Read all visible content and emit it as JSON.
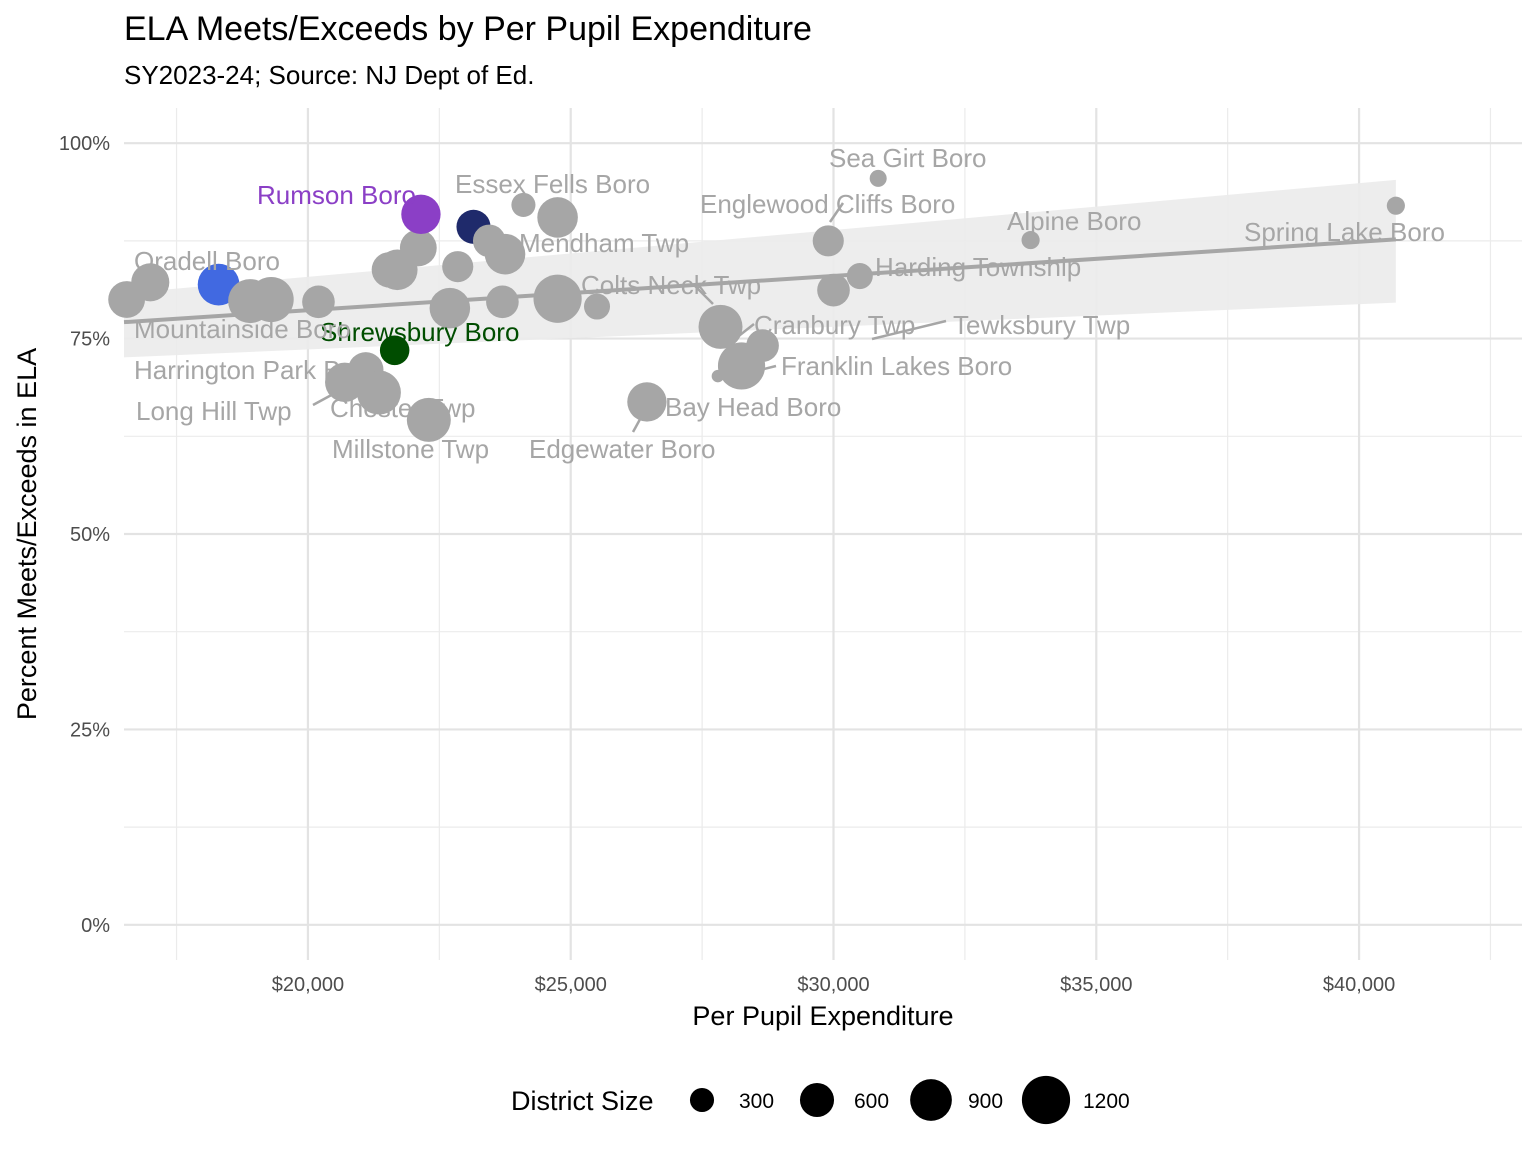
{
  "chart_data": {
    "type": "scatter",
    "title": "ELA Meets/Exceeds by Per Pupil Expenditure",
    "subtitle": "SY2023-24; Source: NJ Dept of Ed.",
    "xlabel": "Per Pupil Expenditure",
    "ylabel": "Percent Meets/Exceeds in ELA",
    "xlim": [
      16500,
      43100
    ],
    "ylim": [
      -0.045,
      1.045
    ],
    "x_ticks": [
      20000,
      25000,
      30000,
      35000,
      40000
    ],
    "x_tick_labels": [
      "$20,000",
      "$25,000",
      "$30,000",
      "$35,000",
      "$40,000"
    ],
    "y_ticks": [
      0,
      0.25,
      0.5,
      0.75,
      1.0
    ],
    "y_tick_labels": [
      "0%",
      "25%",
      "50%",
      "75%",
      "100%"
    ],
    "grid": true,
    "default_color": "#a6a6a6",
    "trend": {
      "x": [
        16500,
        40700
      ],
      "y": [
        0.771,
        0.877
      ],
      "band_lower": [
        0.726,
        0.796
      ],
      "band_upper": [
        0.808,
        0.953
      ],
      "color": "#a6a6a6",
      "band_color": "#ebebeb"
    },
    "legend": {
      "title": "District Size",
      "position": "bottom",
      "sizes": [
        300,
        600,
        900,
        1200
      ],
      "labels": [
        "300",
        "600",
        "900",
        "1200"
      ]
    },
    "points": [
      {
        "x": 16550,
        "y": 0.8,
        "size": 700
      },
      {
        "x": 17000,
        "y": 0.822,
        "size": 750
      },
      {
        "x": 18300,
        "y": 0.819,
        "size": 900,
        "color": "#4169e1"
      },
      {
        "x": 18900,
        "y": 0.798,
        "size": 1000
      },
      {
        "x": 19300,
        "y": 0.8,
        "size": 1050
      },
      {
        "x": 20200,
        "y": 0.797,
        "size": 550
      },
      {
        "x": 20700,
        "y": 0.694,
        "size": 800
      },
      {
        "x": 21100,
        "y": 0.71,
        "size": 650
      },
      {
        "x": 21350,
        "y": 0.681,
        "size": 1000
      },
      {
        "x": 21550,
        "y": 0.838,
        "size": 650
      },
      {
        "x": 21700,
        "y": 0.838,
        "size": 850
      },
      {
        "x": 21650,
        "y": 0.735,
        "size": 450,
        "color": "#004d00"
      },
      {
        "x": 22100,
        "y": 0.866,
        "size": 700
      },
      {
        "x": 22150,
        "y": 0.909,
        "size": 800,
        "color": "#8b3fc6"
      },
      {
        "x": 22300,
        "y": 0.646,
        "size": 1000
      },
      {
        "x": 22700,
        "y": 0.789,
        "size": 850
      },
      {
        "x": 22850,
        "y": 0.842,
        "size": 500
      },
      {
        "x": 23150,
        "y": 0.893,
        "size": 600,
        "color": "#1f2a6b"
      },
      {
        "x": 23450,
        "y": 0.875,
        "size": 550
      },
      {
        "x": 23700,
        "y": 0.797,
        "size": 550
      },
      {
        "x": 23750,
        "y": 0.858,
        "size": 850
      },
      {
        "x": 24100,
        "y": 0.921,
        "size": 300
      },
      {
        "x": 24750,
        "y": 0.905,
        "size": 850
      },
      {
        "x": 24750,
        "y": 0.801,
        "size": 1200
      },
      {
        "x": 25500,
        "y": 0.791,
        "size": 350
      },
      {
        "x": 26450,
        "y": 0.669,
        "size": 800
      },
      {
        "x": 27800,
        "y": 0.702,
        "size": 80
      },
      {
        "x": 27850,
        "y": 0.765,
        "size": 1000
      },
      {
        "x": 28250,
        "y": 0.715,
        "size": 1150
      },
      {
        "x": 28650,
        "y": 0.741,
        "size": 550
      },
      {
        "x": 29900,
        "y": 0.875,
        "size": 500
      },
      {
        "x": 30000,
        "y": 0.812,
        "size": 550
      },
      {
        "x": 30500,
        "y": 0.83,
        "size": 350
      },
      {
        "x": 30850,
        "y": 0.955,
        "size": 150
      },
      {
        "x": 33750,
        "y": 0.876,
        "size": 170
      },
      {
        "x": 40700,
        "y": 0.92,
        "size": 170
      }
    ],
    "annotations": [
      {
        "text": "Rumson Boro",
        "color": "#8b3fc6"
      },
      {
        "text": "Oradell Boro",
        "color": "#a6a6a6"
      },
      {
        "text": "Shrewsbury Boro",
        "color": "#004d00"
      },
      {
        "text": "Essex Fells Boro",
        "color": "#a6a6a6"
      },
      {
        "text": "Sea Girt Boro",
        "color": "#a6a6a6"
      },
      {
        "text": "Englewood Cliffs Boro",
        "color": "#a6a6a6"
      },
      {
        "text": "Alpine Boro",
        "color": "#a6a6a6"
      },
      {
        "text": "Spring Lake Boro",
        "color": "#a6a6a6"
      },
      {
        "text": "Mendham Twp",
        "color": "#a6a6a6"
      },
      {
        "text": "Harding Township",
        "color": "#a6a6a6"
      },
      {
        "text": "Colts Neck Twp",
        "color": "#a6a6a6"
      },
      {
        "text": "Mountainside Boro",
        "color": "#a6a6a6"
      },
      {
        "text": "Cranbury Twp",
        "color": "#a6a6a6"
      },
      {
        "text": "Tewksbury Twp",
        "color": "#a6a6a6"
      },
      {
        "text": "Harrington Park Boro",
        "color": "#a6a6a6"
      },
      {
        "text": "Franklin Lakes Boro",
        "color": "#a6a6a6"
      },
      {
        "text": "Long Hill Twp",
        "color": "#a6a6a6"
      },
      {
        "text": "Chester Twp",
        "color": "#a6a6a6"
      },
      {
        "text": "Bay Head Boro",
        "color": "#a6a6a6"
      },
      {
        "text": "Millstone Twp",
        "color": "#a6a6a6"
      },
      {
        "text": "Edgewater Boro",
        "color": "#a6a6a6"
      }
    ]
  }
}
